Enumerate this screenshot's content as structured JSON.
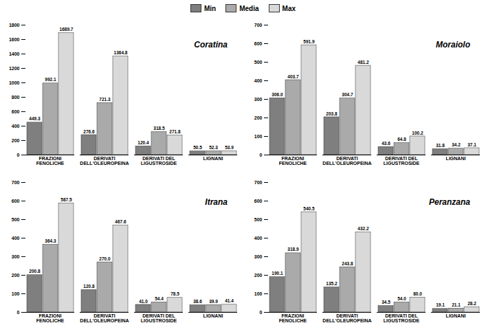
{
  "chart_data": [
    {
      "type": "bar",
      "title": "Coratina",
      "categories": [
        "FRAZIONI\nFENOLICHE",
        "DERIVATI\nDELL'OLEUROPEINA",
        "DERIVATI DEL\nLIGUSTROSIDE",
        "LIGNANI"
      ],
      "series": [
        {
          "name": "Min",
          "color": "#7f7f7f",
          "values": [
            449.3,
            276.6,
            120.4,
            50.5
          ],
          "value_labels": [
            "449.3",
            "276.6",
            "120.4",
            "50.5"
          ]
        },
        {
          "name": "Media",
          "color": "#aaaaaa",
          "values": [
            992.1,
            721.3,
            318.5,
            52.3
          ],
          "value_labels": [
            "992.1",
            "721.3",
            "318.5",
            "52.3"
          ]
        },
        {
          "name": "Max",
          "color": "#d9d9d9",
          "values": [
            1689.7,
            1364.8,
            271.8,
            53.9
          ],
          "value_labels": [
            "1689.7",
            "1364.8",
            "271.8",
            "53.9"
          ]
        }
      ],
      "ylim": [
        0,
        1800
      ],
      "yticks": [
        0,
        200,
        400,
        600,
        800,
        1000,
        1200,
        1400,
        1600,
        1800
      ],
      "grid": false,
      "data_labels": true
    },
    {
      "type": "bar",
      "title": "Moraiolo",
      "categories": [
        "FRAZIONI\nFENOLICHE",
        "DERIVATI\nDELL'OLEUROPEINA",
        "DERIVATI DEL\nLIGUSTROSIDE",
        "LIGNANI"
      ],
      "series": [
        {
          "name": "Min",
          "color": "#7f7f7f",
          "values": [
            306.0,
            203.8,
            43.6,
            31.8
          ],
          "value_labels": [
            "306.0",
            "203.8",
            "43.6",
            "31.8"
          ]
        },
        {
          "name": "Media",
          "color": "#aaaaaa",
          "values": [
            403.7,
            304.7,
            64.8,
            34.2
          ],
          "value_labels": [
            "403.7",
            "304.7",
            "64.8",
            "34.2"
          ]
        },
        {
          "name": "Max",
          "color": "#d9d9d9",
          "values": [
            591.9,
            481.2,
            100.2,
            37.1
          ],
          "value_labels": [
            "591.9",
            "481.2",
            "100.2",
            "37.1"
          ]
        }
      ],
      "ylim": [
        0,
        700
      ],
      "yticks": [
        0,
        100,
        200,
        300,
        400,
        500,
        600,
        700
      ],
      "grid": false,
      "data_labels": true
    },
    {
      "type": "bar",
      "title": "Itrana",
      "categories": [
        "FRAZIONI\nFENOLICHE",
        "DERIVATI\nDELL'OLEUROPEINA",
        "DERIVATI DEL\nLIGUSTROSIDE",
        "LIGNANI"
      ],
      "series": [
        {
          "name": "Min",
          "color": "#7f7f7f",
          "values": [
            200.8,
            120.8,
            41.0,
            38.6
          ],
          "value_labels": [
            "200.8",
            "120.8",
            "41.0",
            "38.6"
          ]
        },
        {
          "name": "Media",
          "color": "#aaaaaa",
          "values": [
            364.3,
            270.0,
            54.4,
            39.9
          ],
          "value_labels": [
            "364.3",
            "270.0",
            "54.4",
            "39.9"
          ]
        },
        {
          "name": "Max",
          "color": "#d9d9d9",
          "values": [
            587.5,
            467.6,
            78.5,
            41.4
          ],
          "value_labels": [
            "587.5",
            "467.6",
            "78.5",
            "41.4"
          ]
        }
      ],
      "ylim": [
        0,
        700
      ],
      "yticks": [
        0,
        100,
        200,
        300,
        400,
        500,
        600,
        700
      ],
      "grid": false,
      "data_labels": true
    },
    {
      "type": "bar",
      "title": "Peranzana",
      "categories": [
        "FRAZIONI\nFENOLICHE",
        "DERIVATI\nDELL'OLEUROPEINA",
        "DERIVATI DEL\nLIGUSTROSIDE",
        "LIGNANI"
      ],
      "series": [
        {
          "name": "Min",
          "color": "#7f7f7f",
          "values": [
            190.1,
            135.2,
            34.5,
            19.1
          ],
          "value_labels": [
            "190.1",
            "135.2",
            "34.5",
            "19.1"
          ]
        },
        {
          "name": "Media",
          "color": "#aaaaaa",
          "values": [
            318.9,
            243.8,
            54.0,
            21.1
          ],
          "value_labels": [
            "318.9",
            "243.8",
            "54.0",
            "21.1"
          ]
        },
        {
          "name": "Max",
          "color": "#d9d9d9",
          "values": [
            540.5,
            432.2,
            80.0,
            28.2
          ],
          "value_labels": [
            "540.5",
            "432.2",
            "80.0",
            "28.2"
          ]
        }
      ],
      "ylim": [
        0,
        700
      ],
      "yticks": [
        0,
        100,
        200,
        300,
        400,
        500,
        600,
        700
      ],
      "grid": false,
      "data_labels": true
    }
  ]
}
